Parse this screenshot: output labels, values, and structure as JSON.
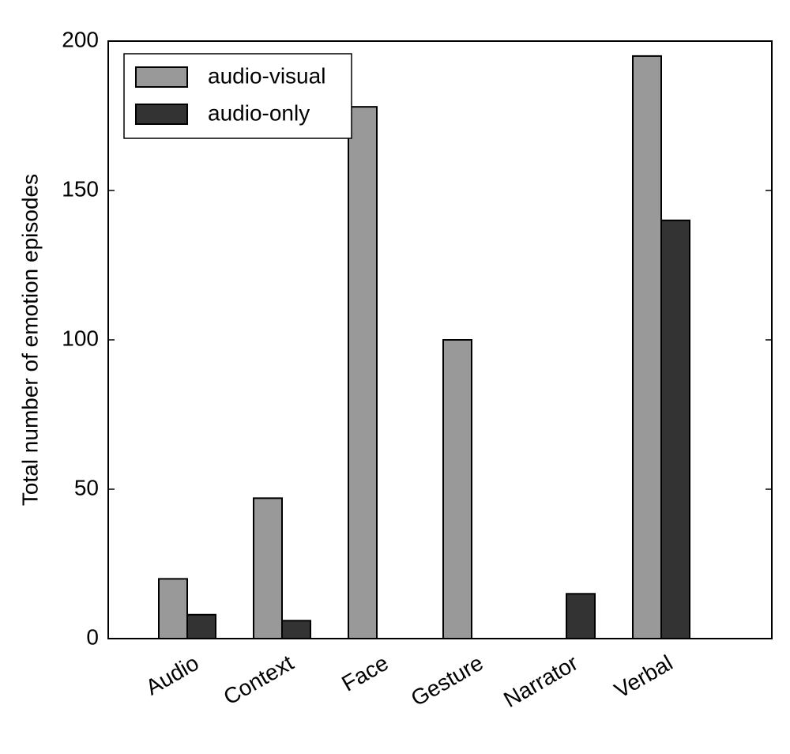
{
  "chart_data": {
    "type": "bar",
    "y_label": "Total number of emotion episodes",
    "categories": [
      "Audio",
      "Context",
      "Face",
      "Gesture",
      "Narrator",
      "Verbal"
    ],
    "series": [
      {
        "name": "audio-visual",
        "color": "#999999",
        "values": [
          20,
          47,
          178,
          100,
          0,
          195
        ]
      },
      {
        "name": "audio-only",
        "color": "#333333",
        "values": [
          8,
          6,
          0,
          0,
          15,
          140
        ]
      }
    ],
    "ylim": [
      0,
      200
    ],
    "yticks": [
      0,
      50,
      100,
      150,
      200
    ],
    "legend": "upper left"
  }
}
